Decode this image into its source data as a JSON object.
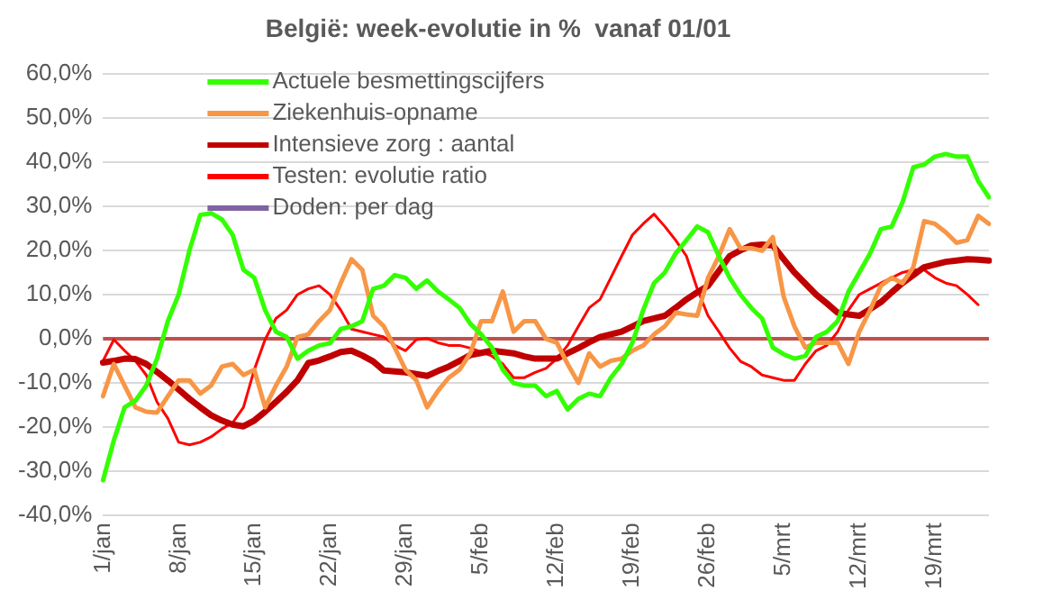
{
  "chart_data": {
    "type": "line",
    "title": "België: week-evolutie in %  vanaf 01/01",
    "categories": [
      "1/jan",
      null,
      null,
      null,
      null,
      null,
      null,
      "8/jan",
      null,
      null,
      null,
      null,
      null,
      null,
      "15/jan",
      null,
      null,
      null,
      null,
      null,
      null,
      "22/jan",
      null,
      null,
      null,
      null,
      null,
      null,
      "29/jan",
      null,
      null,
      null,
      null,
      null,
      null,
      "5/feb",
      null,
      null,
      null,
      null,
      null,
      null,
      "12/feb",
      null,
      null,
      null,
      null,
      null,
      null,
      "19/feb",
      null,
      null,
      null,
      null,
      null,
      null,
      "26/feb",
      null,
      null,
      null,
      null,
      null,
      null,
      "5/mrt",
      null,
      null,
      null,
      null,
      null,
      null,
      "12/mrt",
      null,
      null,
      null,
      null,
      null,
      null,
      "19/mrt",
      null,
      null,
      null,
      null,
      null
    ],
    "series": [
      {
        "name": "Actuele besmettingscijfers",
        "color": "#33ff00",
        "values": [
          -32,
          -23,
          -15.5,
          -14,
          -10.6,
          -4.5,
          4,
          10,
          20,
          28,
          28.4,
          27,
          23.5,
          15.6,
          13.8,
          6.5,
          1.6,
          0.4,
          -4.5,
          -2.7,
          -1.5,
          -1,
          2.2,
          2.8,
          4,
          11.3,
          12,
          14.4,
          13.8,
          11.3,
          13.2,
          10.7,
          8.9,
          7,
          3.4,
          1,
          -2,
          -7,
          -10,
          -10.6,
          -10.6,
          -13,
          -11.8,
          -16,
          -13.6,
          -12.4,
          -13,
          -8.8,
          -5.7,
          -0.9,
          6.5,
          12.6,
          15,
          19.3,
          22.3,
          25.4,
          24.1,
          18.7,
          13.8,
          10,
          7,
          4.6,
          -2,
          -3.5,
          -4.5,
          -3.9,
          0.4,
          1.6,
          4,
          10.7,
          15,
          19.3,
          24.8,
          25.4,
          30.9,
          38.8,
          39.4,
          41.2,
          41.8,
          41.2,
          41.2,
          35.7,
          32
        ]
      },
      {
        "name": "Ziekenhuis-opname",
        "color": "#f79646",
        "values": [
          -13,
          -5.7,
          -10.6,
          -15.5,
          -16.5,
          -16.7,
          -13,
          -9.4,
          -9.4,
          -12.4,
          -10.6,
          -6.3,
          -5.7,
          -8.2,
          -7,
          -15.5,
          -10.6,
          -6.3,
          0.4,
          1,
          4,
          6.5,
          12.6,
          18,
          15.6,
          5.2,
          2.8,
          -2,
          -7,
          -9.4,
          -15.5,
          -11.8,
          -8.8,
          -7,
          -3.3,
          4,
          4,
          10.7,
          1.6,
          4,
          4,
          0,
          -0.9,
          -5.7,
          -10,
          -3.3,
          -6.3,
          -5,
          -4.5,
          -2.7,
          -1.5,
          1,
          2.8,
          5.9,
          5.5,
          5.2,
          13.8,
          18.7,
          24.8,
          20.5,
          20.5,
          19.9,
          23,
          9.5,
          2.8,
          -2,
          -0.9,
          -0.9,
          -0.9,
          -5.7,
          1.6,
          6.5,
          12,
          13.8,
          12.6,
          16.2,
          26.6,
          26,
          24.1,
          21.7,
          22.3,
          27.8,
          26
        ]
      },
      {
        "name": "Intensieve zorg : aantal",
        "color": "#c00000",
        "values": [
          -5.4,
          -5,
          -4.5,
          -4.6,
          -5.7,
          -7.5,
          -9.4,
          -11.5,
          -13.6,
          -15.5,
          -17.3,
          -18.5,
          -19.4,
          -19.8,
          -18.5,
          -16.5,
          -14.3,
          -12,
          -9.4,
          -5.5,
          -4.9,
          -4,
          -3,
          -2.7,
          -3.8,
          -5.1,
          -7.2,
          -7.4,
          -7.6,
          -8,
          -8.4,
          -7.3,
          -6.3,
          -5,
          -3.7,
          -3.2,
          -2.7,
          -3,
          -3.3,
          -4,
          -4.5,
          -4.5,
          -4.5,
          -3.3,
          -2.1,
          -0.8,
          0.4,
          1,
          1.6,
          2.8,
          4,
          4.6,
          5.2,
          7,
          8.9,
          10.5,
          12,
          15.3,
          18.7,
          20,
          21.1,
          21.3,
          21.1,
          18,
          15,
          12.5,
          10,
          8,
          5.9,
          5.5,
          5.2,
          6.7,
          8.3,
          10.5,
          12.6,
          14.4,
          16.2,
          16.8,
          17.4,
          17.7,
          18,
          17.9,
          17.7
        ]
      },
      {
        "name": "Testen: evolutie ratio",
        "color": "#ff0000",
        "values": [
          -5,
          -0.2,
          -2.7,
          -5,
          -8.2,
          -14.3,
          -18,
          -23.4,
          -24,
          -23.4,
          -22.2,
          -20.4,
          -19,
          -15.5,
          -7,
          -0.2,
          4.6,
          6.5,
          10,
          11.3,
          12,
          10,
          6.5,
          2.2,
          1.6,
          1,
          0.4,
          -1.5,
          -2.7,
          -0.2,
          0.1,
          -0.9,
          -1.5,
          -1.5,
          -2.1,
          -3,
          -3.9,
          -5.7,
          -8.8,
          -8.8,
          -7.6,
          -6.7,
          -4.5,
          -1.5,
          2.8,
          7,
          8.9,
          13.8,
          18.7,
          23.5,
          26,
          28.2,
          25.4,
          22.3,
          18.7,
          11.3,
          5.2,
          1.6,
          -2.1,
          -5.1,
          -6.3,
          -8.2,
          -8.8,
          -9.4,
          -9.4,
          -5.7,
          -2.7,
          -1.5,
          1.6,
          6.5,
          10,
          11.3,
          12.6,
          13.8,
          15,
          15.6,
          15.6,
          13.8,
          12.6,
          12,
          10,
          7.7,
          null
        ]
      },
      {
        "name": "Doden: per dag",
        "color": "#8064a2",
        "values": [
          null,
          null,
          null,
          null,
          null,
          null,
          null,
          null,
          null,
          null,
          null,
          null,
          null,
          null,
          null,
          null,
          null,
          null,
          null,
          null,
          null,
          null,
          null,
          null,
          null,
          null,
          null,
          null,
          null,
          null,
          null,
          null,
          null,
          null,
          null,
          null,
          null,
          null,
          null,
          null,
          null,
          null,
          null,
          null,
          null,
          null,
          null,
          null,
          null,
          null,
          null,
          null,
          null,
          null,
          null,
          null,
          null,
          null,
          null,
          null,
          null,
          null,
          null,
          null,
          null,
          null,
          null,
          null,
          null,
          null,
          null,
          null,
          null,
          null,
          null,
          null,
          null,
          null,
          null,
          null,
          null,
          null,
          null
        ]
      }
    ],
    "ylim": [
      -40,
      60
    ],
    "yticks": [
      {
        "value": -40,
        "label": "-40,0%"
      },
      {
        "value": -30,
        "label": "-30,0%"
      },
      {
        "value": -20,
        "label": "-20,0%"
      },
      {
        "value": -10,
        "label": "-10,0%"
      },
      {
        "value": 0,
        "label": "0,0%"
      },
      {
        "value": 10,
        "label": "10,0%"
      },
      {
        "value": 20,
        "label": "20,0%"
      },
      {
        "value": 30,
        "label": "30,0%"
      },
      {
        "value": 40,
        "label": "40,0%"
      },
      {
        "value": 50,
        "label": "50,0%"
      },
      {
        "value": 60,
        "label": "60,0%"
      }
    ],
    "ref_lines": [
      {
        "axis": "y",
        "value": 0,
        "color": "#c0504d"
      }
    ],
    "grid": "y",
    "legend": "top left",
    "marker": "none",
    "line_style": "solid"
  }
}
